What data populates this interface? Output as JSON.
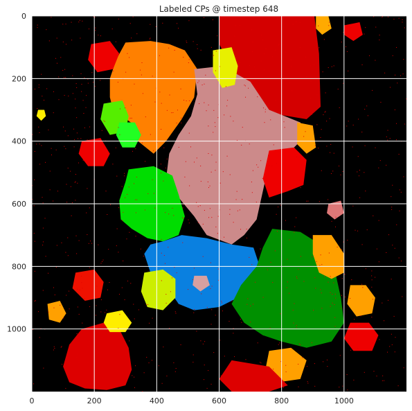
{
  "chart_data": {
    "type": "heatmap",
    "title": "Labeled CPs @ timestep 648",
    "xlabel": "",
    "ylabel": "",
    "xlim": [
      0,
      1200
    ],
    "ylim": [
      1200,
      0
    ],
    "x_ticks": [
      0,
      200,
      400,
      600,
      800,
      1000
    ],
    "y_ticks": [
      0,
      200,
      400,
      600,
      800,
      1000
    ],
    "grid": true,
    "background_color": "#000000",
    "regions": [
      {
        "name": "red-top-right",
        "color": "#d40000",
        "points": [
          [
            600,
            0
          ],
          [
            905,
            0
          ],
          [
            920,
            120
          ],
          [
            925,
            290
          ],
          [
            880,
            330
          ],
          [
            760,
            310
          ],
          [
            690,
            230
          ],
          [
            650,
            180
          ],
          [
            600,
            90
          ]
        ]
      },
      {
        "name": "orange-top-left",
        "color": "#ff8000",
        "points": [
          [
            300,
            85
          ],
          [
            380,
            80
          ],
          [
            440,
            90
          ],
          [
            490,
            110
          ],
          [
            530,
            170
          ],
          [
            520,
            260
          ],
          [
            480,
            330
          ],
          [
            430,
            400
          ],
          [
            390,
            440
          ],
          [
            340,
            400
          ],
          [
            330,
            350
          ],
          [
            290,
            320
          ],
          [
            260,
            300
          ],
          [
            250,
            260
          ],
          [
            250,
            200
          ],
          [
            270,
            140
          ]
        ]
      },
      {
        "name": "pink-center",
        "color": "#cc8a8a",
        "points": [
          [
            520,
            170
          ],
          [
            610,
            160
          ],
          [
            700,
            210
          ],
          [
            760,
            300
          ],
          [
            860,
            340
          ],
          [
            880,
            380
          ],
          [
            840,
            420
          ],
          [
            760,
            470
          ],
          [
            740,
            560
          ],
          [
            720,
            650
          ],
          [
            680,
            700
          ],
          [
            640,
            730
          ],
          [
            560,
            700
          ],
          [
            520,
            640
          ],
          [
            470,
            580
          ],
          [
            430,
            520
          ],
          [
            440,
            440
          ],
          [
            470,
            380
          ],
          [
            510,
            320
          ],
          [
            530,
            250
          ]
        ]
      },
      {
        "name": "green-center-left",
        "color": "#00dd00",
        "points": [
          [
            310,
            490
          ],
          [
            390,
            480
          ],
          [
            450,
            510
          ],
          [
            470,
            570
          ],
          [
            490,
            640
          ],
          [
            470,
            700
          ],
          [
            420,
            720
          ],
          [
            370,
            710
          ],
          [
            320,
            680
          ],
          [
            285,
            650
          ],
          [
            280,
            590
          ],
          [
            300,
            530
          ]
        ]
      },
      {
        "name": "blue-lower-center",
        "color": "#0a80e0",
        "points": [
          [
            420,
            720
          ],
          [
            480,
            700
          ],
          [
            560,
            710
          ],
          [
            640,
            730
          ],
          [
            710,
            740
          ],
          [
            730,
            800
          ],
          [
            700,
            860
          ],
          [
            660,
            900
          ],
          [
            600,
            930
          ],
          [
            520,
            940
          ],
          [
            470,
            920
          ],
          [
            430,
            860
          ],
          [
            380,
            820
          ],
          [
            360,
            760
          ],
          [
            380,
            730
          ]
        ]
      },
      {
        "name": "green-lower-right",
        "color": "#009000",
        "points": [
          [
            770,
            680
          ],
          [
            860,
            690
          ],
          [
            940,
            740
          ],
          [
            970,
            810
          ],
          [
            990,
            900
          ],
          [
            1000,
            980
          ],
          [
            960,
            1040
          ],
          [
            880,
            1060
          ],
          [
            800,
            1040
          ],
          [
            740,
            1020
          ],
          [
            680,
            980
          ],
          [
            640,
            920
          ],
          [
            670,
            860
          ],
          [
            720,
            800
          ],
          [
            740,
            740
          ]
        ]
      },
      {
        "name": "red-bottom-left",
        "color": "#dd0000",
        "points": [
          [
            160,
            1000
          ],
          [
            230,
            980
          ],
          [
            280,
            1000
          ],
          [
            310,
            1060
          ],
          [
            320,
            1130
          ],
          [
            300,
            1180
          ],
          [
            240,
            1195
          ],
          [
            170,
            1190
          ],
          [
            120,
            1170
          ],
          [
            100,
            1120
          ],
          [
            120,
            1050
          ]
        ]
      },
      {
        "name": "red-right-mid",
        "color": "#ee0000",
        "points": [
          [
            760,
            430
          ],
          [
            840,
            420
          ],
          [
            880,
            460
          ],
          [
            870,
            540
          ],
          [
            820,
            560
          ],
          [
            760,
            580
          ],
          [
            740,
            520
          ]
        ]
      },
      {
        "name": "orange-right",
        "color": "#ffa000",
        "points": [
          [
            900,
            700
          ],
          [
            960,
            700
          ],
          [
            1000,
            760
          ],
          [
            1000,
            820
          ],
          [
            960,
            840
          ],
          [
            920,
            820
          ],
          [
            900,
            760
          ]
        ]
      },
      {
        "name": "orange-far-right",
        "color": "#ffa000",
        "points": [
          [
            1020,
            860
          ],
          [
            1070,
            860
          ],
          [
            1100,
            900
          ],
          [
            1090,
            950
          ],
          [
            1040,
            960
          ],
          [
            1010,
            920
          ]
        ]
      },
      {
        "name": "lime-lower-left",
        "color": "#ccee00",
        "points": [
          [
            360,
            820
          ],
          [
            420,
            810
          ],
          [
            460,
            840
          ],
          [
            460,
            900
          ],
          [
            420,
            940
          ],
          [
            370,
            930
          ],
          [
            350,
            880
          ]
        ]
      },
      {
        "name": "lime-top-center",
        "color": "#e8f000",
        "points": [
          [
            580,
            110
          ],
          [
            640,
            100
          ],
          [
            660,
            160
          ],
          [
            650,
            220
          ],
          [
            610,
            230
          ],
          [
            580,
            180
          ]
        ]
      },
      {
        "name": "lime-left",
        "color": "#55ee00",
        "points": [
          [
            230,
            280
          ],
          [
            290,
            270
          ],
          [
            310,
            320
          ],
          [
            300,
            370
          ],
          [
            250,
            380
          ],
          [
            220,
            330
          ]
        ]
      },
      {
        "name": "green-bright-left",
        "color": "#22ff22",
        "points": [
          [
            280,
            340
          ],
          [
            330,
            340
          ],
          [
            350,
            380
          ],
          [
            330,
            420
          ],
          [
            290,
            420
          ],
          [
            270,
            380
          ]
        ]
      },
      {
        "name": "orange-lower-right",
        "color": "#ffa000",
        "points": [
          [
            760,
            1070
          ],
          [
            830,
            1060
          ],
          [
            880,
            1100
          ],
          [
            860,
            1160
          ],
          [
            790,
            1170
          ],
          [
            750,
            1120
          ]
        ]
      },
      {
        "name": "orange-right-2",
        "color": "#ffa000",
        "points": [
          [
            850,
            340
          ],
          [
            900,
            350
          ],
          [
            910,
            420
          ],
          [
            880,
            440
          ],
          [
            850,
            410
          ]
        ]
      },
      {
        "name": "red-left-cluster",
        "color": "#ee0000",
        "points": [
          [
            190,
            90
          ],
          [
            250,
            80
          ],
          [
            280,
            120
          ],
          [
            260,
            170
          ],
          [
            210,
            180
          ],
          [
            180,
            140
          ]
        ]
      },
      {
        "name": "red-bottom-center",
        "color": "#dd0000",
        "points": [
          [
            640,
            1100
          ],
          [
            760,
            1120
          ],
          [
            820,
            1180
          ],
          [
            760,
            1200
          ],
          [
            640,
            1200
          ],
          [
            600,
            1160
          ]
        ]
      },
      {
        "name": "yellow-bottom-left",
        "color": "#ffee00",
        "points": [
          [
            240,
            950
          ],
          [
            290,
            940
          ],
          [
            320,
            980
          ],
          [
            300,
            1010
          ],
          [
            250,
            1010
          ],
          [
            230,
            980
          ]
        ]
      },
      {
        "name": "red-left-mid",
        "color": "#ee0000",
        "points": [
          [
            160,
            400
          ],
          [
            220,
            390
          ],
          [
            250,
            440
          ],
          [
            230,
            480
          ],
          [
            180,
            480
          ],
          [
            150,
            440
          ]
        ]
      },
      {
        "name": "red-lower-left",
        "color": "#ee1100",
        "points": [
          [
            140,
            820
          ],
          [
            200,
            810
          ],
          [
            230,
            850
          ],
          [
            220,
            900
          ],
          [
            170,
            910
          ],
          [
            130,
            870
          ]
        ]
      },
      {
        "name": "red-right-edge",
        "color": "#ee0000",
        "points": [
          [
            1020,
            980
          ],
          [
            1080,
            980
          ],
          [
            1110,
            1020
          ],
          [
            1090,
            1070
          ],
          [
            1030,
            1070
          ],
          [
            1000,
            1030
          ]
        ]
      },
      {
        "name": "orange-top-right",
        "color": "#ffaa00",
        "points": [
          [
            910,
            0
          ],
          [
            950,
            0
          ],
          [
            960,
            40
          ],
          [
            930,
            60
          ],
          [
            910,
            40
          ]
        ]
      },
      {
        "name": "red-top-right-2",
        "color": "#ee0000",
        "points": [
          [
            1000,
            30
          ],
          [
            1050,
            20
          ],
          [
            1060,
            60
          ],
          [
            1030,
            80
          ],
          [
            1000,
            60
          ]
        ]
      },
      {
        "name": "yellow-small-left",
        "color": "#ffee00",
        "points": [
          [
            20,
            300
          ],
          [
            40,
            300
          ],
          [
            45,
            320
          ],
          [
            30,
            335
          ],
          [
            15,
            320
          ]
        ]
      },
      {
        "name": "orange-left-lower",
        "color": "#ffa000",
        "points": [
          [
            50,
            920
          ],
          [
            90,
            910
          ],
          [
            110,
            950
          ],
          [
            90,
            980
          ],
          [
            55,
            970
          ]
        ]
      },
      {
        "name": "salmon-right",
        "color": "#dd7777",
        "points": [
          [
            950,
            600
          ],
          [
            990,
            590
          ],
          [
            1000,
            630
          ],
          [
            970,
            650
          ],
          [
            945,
            630
          ]
        ]
      },
      {
        "name": "pink-small-lower",
        "color": "#d8a0a0",
        "points": [
          [
            520,
            830
          ],
          [
            560,
            830
          ],
          [
            570,
            860
          ],
          [
            540,
            880
          ],
          [
            515,
            860
          ]
        ]
      }
    ]
  }
}
